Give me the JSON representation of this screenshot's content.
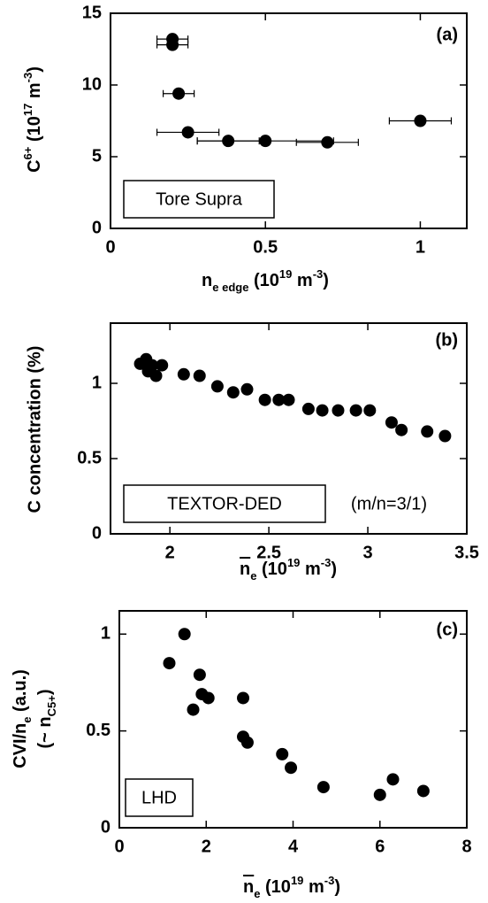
{
  "chart_data": [
    {
      "type": "scatter",
      "panel_label": "(a)",
      "annotation": "Tore Supra",
      "xlabel": [
        "n",
        "e edge",
        " (10",
        "19",
        " m",
        "-3",
        ")"
      ],
      "ylabel": [
        "C",
        "6+",
        " (10",
        "17",
        " m",
        "-3",
        ")"
      ],
      "color": "#000000",
      "x": [
        0.2,
        0.2,
        0.22,
        0.25,
        0.38,
        0.5,
        0.7,
        1.0
      ],
      "x_err": [
        0.05,
        0.05,
        0.05,
        0.1,
        0.1,
        0.22,
        0.1,
        0.1
      ],
      "values": [
        13.2,
        12.8,
        9.4,
        6.7,
        6.1,
        6.1,
        6.0,
        7.5
      ],
      "xlim": [
        0,
        1.15
      ],
      "ylim": [
        0,
        15
      ],
      "xticks": [
        0,
        0.5,
        1
      ],
      "yticks": [
        0,
        5,
        10,
        15
      ]
    },
    {
      "type": "scatter",
      "panel_label": "(b)",
      "annotation": "TEXTOR-DED",
      "note": "(m/n=3/1)",
      "xlabel": [
        "n",
        "e",
        " (10",
        "19",
        " m",
        "-3",
        ")"
      ],
      "ylabel": "C concentration (%)",
      "color": "#000000",
      "x": [
        1.85,
        1.88,
        1.89,
        1.91,
        1.93,
        1.96,
        2.07,
        2.15,
        2.24,
        2.32,
        2.39,
        2.48,
        2.55,
        2.6,
        2.7,
        2.77,
        2.85,
        2.94,
        3.01,
        3.12,
        3.17,
        3.3,
        3.39
      ],
      "values": [
        1.13,
        1.16,
        1.08,
        1.12,
        1.05,
        1.12,
        1.06,
        1.05,
        0.98,
        0.94,
        0.96,
        0.89,
        0.89,
        0.89,
        0.83,
        0.82,
        0.82,
        0.82,
        0.82,
        0.74,
        0.69,
        0.68,
        0.65
      ],
      "xlim": [
        1.7,
        3.5
      ],
      "ylim": [
        0,
        1.4
      ],
      "xticks": [
        2,
        2.5,
        3,
        3.5
      ],
      "yticks": [
        0,
        0.5,
        1
      ]
    },
    {
      "type": "scatter",
      "panel_label": "(c)",
      "annotation": "LHD",
      "xlabel": [
        "n",
        "e",
        " (10",
        "19",
        " m",
        "-3",
        ")"
      ],
      "ylabel": [
        "CVI/n",
        "e",
        " (a.u.)",
        "(~ n",
        "C5+",
        ")"
      ],
      "color": "#000000",
      "x": [
        1.15,
        1.5,
        1.7,
        1.85,
        1.9,
        2.05,
        2.85,
        2.85,
        2.95,
        3.75,
        3.95,
        4.7,
        6.0,
        6.3,
        7.0
      ],
      "values": [
        0.85,
        1.0,
        0.61,
        0.79,
        0.69,
        0.67,
        0.67,
        0.47,
        0.44,
        0.38,
        0.31,
        0.21,
        0.17,
        0.25,
        0.19
      ],
      "xlim": [
        0,
        8
      ],
      "ylim": [
        0,
        1.12
      ],
      "xticks": [
        0,
        2,
        4,
        6,
        8
      ],
      "yticks": [
        0,
        0.5,
        1
      ]
    }
  ]
}
